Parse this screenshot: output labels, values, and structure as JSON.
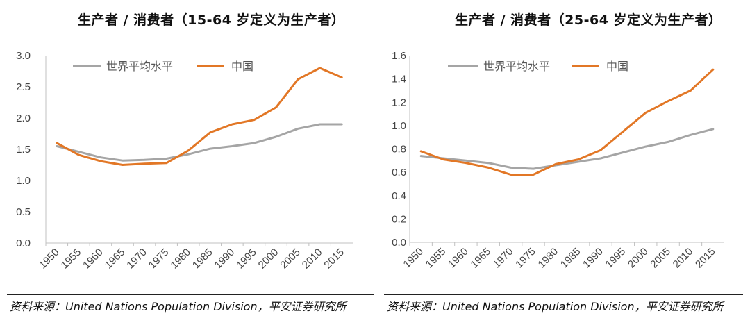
{
  "colors": {
    "world": "#a5a5a5",
    "china": "#e27726",
    "axis": "#c0c0c0",
    "text": "#444444"
  },
  "chart_data": [
    {
      "type": "line",
      "title": "生产者 / 消费者（15-64 岁定义为生产者）",
      "x": [
        "1950",
        "1955",
        "1960",
        "1965",
        "1970",
        "1975",
        "1980",
        "1985",
        "1990",
        "1995",
        "2000",
        "2005",
        "2010",
        "2015"
      ],
      "ylim": [
        0,
        3.0
      ],
      "yticks": [
        "0.0",
        "0.5",
        "1.0",
        "1.5",
        "2.0",
        "2.5",
        "3.0"
      ],
      "series": [
        {
          "name": "世界平均水平",
          "values": [
            1.55,
            1.46,
            1.37,
            1.32,
            1.33,
            1.35,
            1.42,
            1.51,
            1.55,
            1.6,
            1.7,
            1.83,
            1.9,
            1.9
          ]
        },
        {
          "name": "中国",
          "values": [
            1.6,
            1.41,
            1.31,
            1.25,
            1.27,
            1.28,
            1.48,
            1.77,
            1.9,
            1.97,
            2.17,
            2.62,
            2.8,
            2.65
          ]
        }
      ],
      "source": "资料来源：United Nations Population Division，平安证券研究所"
    },
    {
      "type": "line",
      "title": "生产者 / 消费者（25-64 岁定义为生产者）",
      "x": [
        "1950",
        "1955",
        "1960",
        "1965",
        "1970",
        "1975",
        "1980",
        "1985",
        "1990",
        "1995",
        "2000",
        "2005",
        "2010",
        "2015"
      ],
      "ylim": [
        0,
        1.6
      ],
      "yticks": [
        "0.0",
        "0.2",
        "0.4",
        "0.6",
        "0.8",
        "1.0",
        "1.2",
        "1.4",
        "1.6"
      ],
      "series": [
        {
          "name": "世界平均水平",
          "values": [
            0.74,
            0.72,
            0.7,
            0.68,
            0.64,
            0.63,
            0.66,
            0.69,
            0.72,
            0.77,
            0.82,
            0.86,
            0.92,
            0.97
          ]
        },
        {
          "name": "中国",
          "values": [
            0.78,
            0.71,
            0.68,
            0.64,
            0.58,
            0.58,
            0.67,
            0.71,
            0.79,
            0.95,
            1.11,
            1.21,
            1.3,
            1.48
          ]
        }
      ],
      "source": "资料来源：United Nations Population Division，平安证券研究所"
    }
  ]
}
